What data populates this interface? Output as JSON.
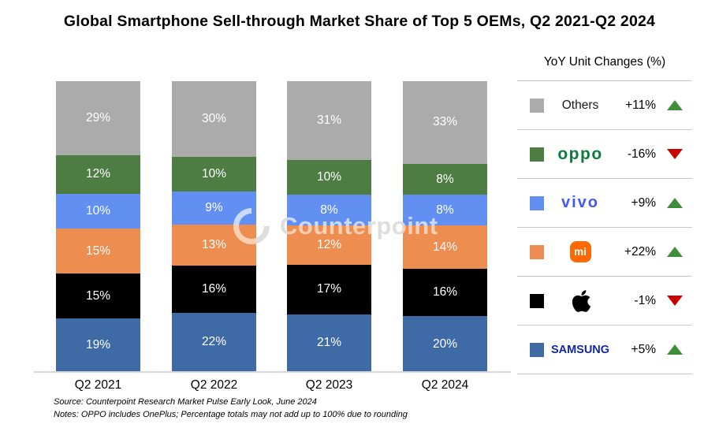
{
  "title": "Global Smartphone Sell-through Market Share of Top 5 OEMs, Q2 2021-Q2 2024",
  "chart_data": {
    "type": "bar",
    "stacked": true,
    "stack_order": "bottom-to-top",
    "unit": "%",
    "categories": [
      "Q2 2021",
      "Q2 2022",
      "Q2 2023",
      "Q2 2024"
    ],
    "series": [
      {
        "name": "Samsung",
        "color": "#3E6AA5",
        "values": [
          19,
          22,
          21,
          20
        ]
      },
      {
        "name": "Apple",
        "color": "#000000",
        "values": [
          15,
          16,
          17,
          16
        ]
      },
      {
        "name": "Xiaomi",
        "color": "#ED8D50",
        "values": [
          15,
          13,
          12,
          14
        ]
      },
      {
        "name": "vivo",
        "color": "#6190F2",
        "values": [
          10,
          9,
          8,
          8
        ]
      },
      {
        "name": "OPPO",
        "color": "#4E7D44",
        "values": [
          12,
          10,
          10,
          8
        ]
      },
      {
        "name": "Others",
        "color": "#ABABAB",
        "values": [
          29,
          30,
          31,
          33
        ]
      }
    ],
    "title": "Global Smartphone Sell-through Market Share of Top 5 OEMs, Q2 2021-Q2 2024",
    "xlabel": "",
    "ylabel": "",
    "ylim": [
      0,
      100
    ],
    "grid": false,
    "legend_position": "right",
    "value_labels": "inside-white"
  },
  "legend": {
    "title": "YoY Unit Changes (%)",
    "up_color": "#3E8E3C",
    "down_color": "#C80000",
    "rows": [
      {
        "name": "Others",
        "swatch": "#ABABAB",
        "logo_type": "text",
        "logo_text": "Others",
        "logo_color": "#1a1a1a",
        "change": "+11%",
        "direction": "up"
      },
      {
        "name": "OPPO",
        "swatch": "#4E7D44",
        "logo_type": "oppo",
        "logo_text": "oppo",
        "logo_color": "#0C7A3E",
        "change": "-16%",
        "direction": "down"
      },
      {
        "name": "vivo",
        "swatch": "#6190F2",
        "logo_type": "vivo",
        "logo_text": "vivo",
        "logo_color": "#4457F6",
        "change": "+9%",
        "direction": "up"
      },
      {
        "name": "Xiaomi",
        "swatch": "#ED8D50",
        "logo_type": "mi-badge",
        "logo_text": "mi",
        "logo_color": "#FF6900",
        "change": "+22%",
        "direction": "up"
      },
      {
        "name": "Apple",
        "swatch": "#000000",
        "logo_type": "apple",
        "logo_text": "",
        "logo_color": "#000000",
        "change": "-1%",
        "direction": "down"
      },
      {
        "name": "Samsung",
        "swatch": "#3E6AA5",
        "logo_type": "samsung",
        "logo_text": "SAMSUNG",
        "logo_color": "#1428A0",
        "change": "+5%",
        "direction": "up"
      }
    ]
  },
  "watermark": {
    "text": "Counterpoint"
  },
  "footer": {
    "source": "Source: Counterpoint Research Market Pulse Early Look, June 2024",
    "notes": "Notes: OPPO includes OnePlus; Percentage totals may not add up to 100% due to rounding"
  }
}
